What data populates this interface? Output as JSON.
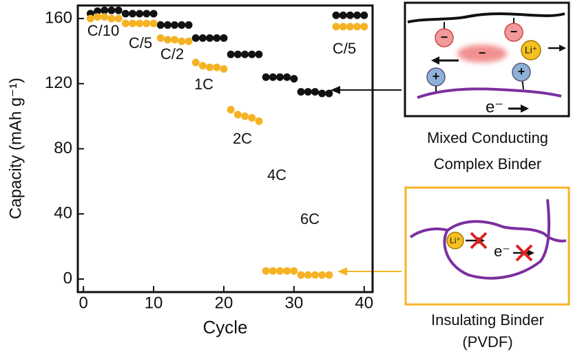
{
  "chart_data": {
    "type": "scatter",
    "x_label": "Cycle",
    "y_label": "Capacity (mAh g⁻¹)",
    "x": [
      1,
      2,
      3,
      4,
      5,
      6,
      7,
      8,
      9,
      10,
      11,
      12,
      13,
      14,
      15,
      16,
      17,
      18,
      19,
      20,
      21,
      22,
      23,
      24,
      25,
      26,
      27,
      28,
      29,
      30,
      31,
      32,
      33,
      34,
      35,
      36,
      37,
      38,
      39,
      40
    ],
    "series": [
      {
        "color": "#111111",
        "values": [
          163,
          164.5,
          165,
          165,
          165,
          163,
          163,
          163,
          163,
          163,
          156,
          156,
          156,
          156,
          156,
          148,
          148,
          148,
          148,
          148,
          138,
          138,
          138,
          138,
          138,
          124,
          124,
          124,
          124,
          123,
          115,
          115,
          115,
          114,
          114,
          162,
          162,
          162,
          162,
          162
        ]
      },
      {
        "color": "#f5b324",
        "values": [
          160,
          161,
          161,
          160,
          160,
          157,
          157,
          157,
          157,
          157,
          148,
          147,
          147,
          146,
          146,
          133,
          131,
          130,
          130,
          129,
          104,
          101,
          100,
          99,
          97,
          5,
          5,
          5,
          5,
          5,
          2.5,
          2.5,
          2.5,
          2.5,
          2.5,
          155,
          155,
          155,
          155,
          155
        ]
      }
    ],
    "annotations": [
      "C/10",
      "C/5",
      "C/2",
      "1C",
      "2C",
      "4C",
      "6C",
      "C/5"
    ],
    "xlim": [
      -0.8,
      41.2
    ],
    "ylim": [
      -8,
      168
    ],
    "xticks": [
      0,
      10,
      20,
      30,
      40
    ],
    "yticks": [
      0,
      40,
      80,
      120,
      160
    ]
  },
  "diagrams": {
    "conducting": {
      "label": [
        "Mixed Conducting",
        "Complex Binder"
      ],
      "anion": "−",
      "cation": "+",
      "lithium": "Li⁺",
      "electron": "e⁻"
    },
    "insulating": {
      "label": [
        "Insulating Binder",
        "(PVDF)"
      ],
      "lithium": "Li⁺",
      "electron": "e⁻"
    }
  }
}
